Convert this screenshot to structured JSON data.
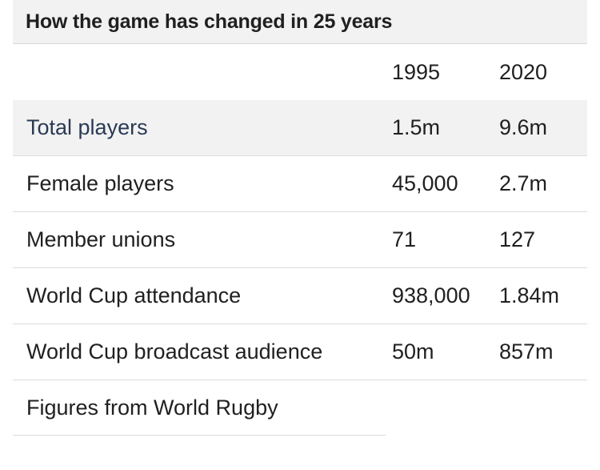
{
  "title": "How the game has changed in 25 years",
  "columns": [
    "",
    "1995",
    "2020"
  ],
  "rows": [
    {
      "label": "Total players",
      "y1995": "1.5m",
      "y2020": "9.6m"
    },
    {
      "label": "Female players",
      "y1995": "45,000",
      "y2020": "2.7m"
    },
    {
      "label": "Member unions",
      "y1995": "71",
      "y2020": "127"
    },
    {
      "label": "World Cup attendance",
      "y1995": "938,000",
      "y2020": "1.84m"
    },
    {
      "label": "World Cup broadcast audience",
      "y1995": "50m",
      "y2020": "857m"
    }
  ],
  "source": "Figures from World Rugby",
  "colors": {
    "shaded_row": "#f2f2f2",
    "text": "#202020",
    "highlight_label": "#2a3a55"
  }
}
